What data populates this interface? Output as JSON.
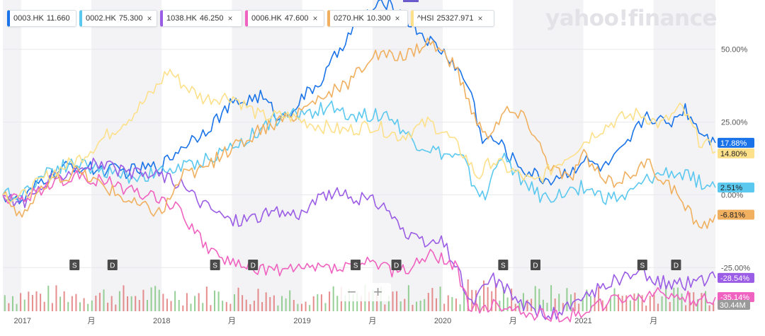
{
  "logo": "yahoo!finance",
  "chips": [
    {
      "symbol": "0003.HK",
      "value": "11.660",
      "color": "#1a73e8",
      "closable": false
    },
    {
      "symbol": "0002.HK",
      "value": "75.300",
      "color": "#5bc8f0",
      "closable": true
    },
    {
      "symbol": "1038.HK",
      "value": "46.250",
      "color": "#9b5de5",
      "closable": true
    },
    {
      "symbol": "0006.HK",
      "value": "47.600",
      "color": "#f062c0",
      "closable": true
    },
    {
      "symbol": "0270.HK",
      "value": "10.300",
      "color": "#f0b060",
      "closable": true
    },
    {
      "symbol": "^HSI",
      "value": "25327.971",
      "color": "#fde08a",
      "closable": true
    }
  ],
  "close_glyph": "×",
  "zoom": {
    "minus": "−",
    "plus": "+"
  },
  "chart_data": {
    "type": "line",
    "y_unit": "% change",
    "ylim": [
      -40,
      65
    ],
    "yticks": [
      50,
      25,
      0,
      -25
    ],
    "ytick_labels": [
      "50.00%",
      "25.00%",
      "0.00%",
      "-25.00%"
    ],
    "x_ticks": [
      {
        "label": "2017",
        "t": 0.01
      },
      {
        "label": "月",
        "t": 0.5
      },
      {
        "label": "2018",
        "t": 1.0
      },
      {
        "label": "月",
        "t": 1.5
      },
      {
        "label": "2019",
        "t": 2.0
      },
      {
        "label": "月",
        "t": 2.5
      },
      {
        "label": "2020",
        "t": 3.0
      },
      {
        "label": "月",
        "t": 3.5
      },
      {
        "label": "2021",
        "t": 4.0
      },
      {
        "label": "月",
        "t": 4.5
      }
    ],
    "x_range": [
      -0.13,
      4.94
    ],
    "shaded_bands": [
      [
        -0.13,
        0.0
      ],
      [
        0.5,
        1.0
      ],
      [
        1.5,
        2.0
      ],
      [
        2.5,
        3.0
      ],
      [
        3.5,
        4.0
      ],
      [
        4.5,
        4.94
      ]
    ],
    "series": [
      {
        "name": "0003.HK",
        "color": "#1a73e8",
        "last_label": "17.88%",
        "seed": 11,
        "points": [
          [
            -0.13,
            0
          ],
          [
            0,
            -3
          ],
          [
            0.15,
            5
          ],
          [
            0.35,
            10
          ],
          [
            0.5,
            9
          ],
          [
            0.75,
            8
          ],
          [
            1.0,
            10
          ],
          [
            1.15,
            17
          ],
          [
            1.3,
            22
          ],
          [
            1.5,
            31
          ],
          [
            1.7,
            34
          ],
          [
            1.85,
            26
          ],
          [
            2.0,
            33
          ],
          [
            2.15,
            40
          ],
          [
            2.3,
            53
          ],
          [
            2.45,
            62
          ],
          [
            2.6,
            66
          ],
          [
            2.75,
            60
          ],
          [
            2.9,
            53
          ],
          [
            3.05,
            47
          ],
          [
            3.2,
            36
          ],
          [
            3.27,
            20
          ],
          [
            3.4,
            18
          ],
          [
            3.5,
            12
          ],
          [
            3.6,
            8
          ],
          [
            3.75,
            5
          ],
          [
            3.9,
            8
          ],
          [
            4.0,
            12
          ],
          [
            4.15,
            9
          ],
          [
            4.3,
            16
          ],
          [
            4.45,
            28
          ],
          [
            4.6,
            24
          ],
          [
            4.72,
            30
          ],
          [
            4.82,
            23
          ],
          [
            4.94,
            17.88
          ]
        ]
      },
      {
        "name": "0002.HK",
        "color": "#5bc8f0",
        "last_label": "2.51%",
        "seed": 22,
        "points": [
          [
            -0.13,
            0
          ],
          [
            0,
            0
          ],
          [
            0.2,
            9
          ],
          [
            0.4,
            11
          ],
          [
            0.6,
            8
          ],
          [
            0.8,
            6
          ],
          [
            1.0,
            8
          ],
          [
            1.2,
            10
          ],
          [
            1.4,
            14
          ],
          [
            1.6,
            19
          ],
          [
            1.8,
            26
          ],
          [
            2.0,
            28
          ],
          [
            2.2,
            30
          ],
          [
            2.4,
            27
          ],
          [
            2.6,
            28
          ],
          [
            2.8,
            18
          ],
          [
            3.0,
            14
          ],
          [
            3.15,
            12
          ],
          [
            3.2,
            5
          ],
          [
            3.3,
            -2
          ],
          [
            3.4,
            14
          ],
          [
            3.55,
            6
          ],
          [
            3.7,
            -1
          ],
          [
            3.85,
            0
          ],
          [
            4.0,
            3
          ],
          [
            4.15,
            -1
          ],
          [
            4.3,
            -1
          ],
          [
            4.45,
            5
          ],
          [
            4.6,
            8
          ],
          [
            4.75,
            6
          ],
          [
            4.94,
            2.51
          ]
        ]
      },
      {
        "name": "1038.HK",
        "color": "#9b5de5",
        "last_label": "-28.54%",
        "seed": 33,
        "points": [
          [
            -0.13,
            0
          ],
          [
            0,
            -3
          ],
          [
            0.15,
            3
          ],
          [
            0.35,
            9
          ],
          [
            0.55,
            11
          ],
          [
            0.75,
            7
          ],
          [
            1.0,
            7
          ],
          [
            1.15,
            3
          ],
          [
            1.3,
            -3
          ],
          [
            1.5,
            -9
          ],
          [
            1.7,
            -7
          ],
          [
            1.85,
            -6
          ],
          [
            2.0,
            -6
          ],
          [
            2.2,
            1
          ],
          [
            2.35,
            -1
          ],
          [
            2.5,
            -2
          ],
          [
            2.6,
            -4
          ],
          [
            2.75,
            -15
          ],
          [
            2.9,
            -17
          ],
          [
            3.0,
            -16
          ],
          [
            3.1,
            -25
          ],
          [
            3.2,
            -38
          ],
          [
            3.35,
            -28
          ],
          [
            3.5,
            -35
          ],
          [
            3.65,
            -40
          ],
          [
            3.8,
            -41
          ],
          [
            3.95,
            -38
          ],
          [
            4.1,
            -32
          ],
          [
            4.25,
            -29
          ],
          [
            4.4,
            -27
          ],
          [
            4.55,
            -30
          ],
          [
            4.7,
            -31
          ],
          [
            4.85,
            -29
          ],
          [
            4.94,
            -28.54
          ]
        ]
      },
      {
        "name": "0006.HK",
        "color": "#f062c0",
        "last_label": "-35.14%",
        "seed": 44,
        "points": [
          [
            -0.13,
            0
          ],
          [
            0,
            -2
          ],
          [
            0.15,
            2
          ],
          [
            0.35,
            6
          ],
          [
            0.55,
            5
          ],
          [
            0.75,
            2
          ],
          [
            1.0,
            -1
          ],
          [
            1.15,
            -6
          ],
          [
            1.25,
            -14
          ],
          [
            1.35,
            -19
          ],
          [
            1.5,
            -24
          ],
          [
            1.7,
            -25
          ],
          [
            1.9,
            -26
          ],
          [
            2.1,
            -25
          ],
          [
            2.3,
            -25
          ],
          [
            2.5,
            -23
          ],
          [
            2.7,
            -27
          ],
          [
            2.9,
            -21
          ],
          [
            3.0,
            -21
          ],
          [
            3.1,
            -25
          ],
          [
            3.2,
            -40
          ],
          [
            3.4,
            -38
          ],
          [
            3.55,
            -40
          ],
          [
            3.7,
            -41
          ],
          [
            3.85,
            -42
          ],
          [
            4.0,
            -40
          ],
          [
            4.2,
            -37
          ],
          [
            4.4,
            -35
          ],
          [
            4.55,
            -34
          ],
          [
            4.7,
            -35
          ],
          [
            4.85,
            -36
          ],
          [
            4.94,
            -35.14
          ]
        ]
      },
      {
        "name": "0270.HK",
        "color": "#f0b060",
        "last_label": "-6.81%",
        "seed": 55,
        "points": [
          [
            -0.13,
            0
          ],
          [
            0,
            -7
          ],
          [
            0.2,
            4
          ],
          [
            0.4,
            8
          ],
          [
            0.6,
            3
          ],
          [
            0.8,
            -3
          ],
          [
            1.0,
            -6
          ],
          [
            1.15,
            7
          ],
          [
            1.3,
            9
          ],
          [
            1.5,
            16
          ],
          [
            1.7,
            22
          ],
          [
            1.9,
            26
          ],
          [
            2.1,
            33
          ],
          [
            2.3,
            37
          ],
          [
            2.5,
            48
          ],
          [
            2.7,
            47
          ],
          [
            2.9,
            53
          ],
          [
            3.0,
            49
          ],
          [
            3.1,
            43
          ],
          [
            3.2,
            30
          ],
          [
            3.3,
            20
          ],
          [
            3.45,
            29
          ],
          [
            3.6,
            26
          ],
          [
            3.75,
            11
          ],
          [
            3.9,
            5
          ],
          [
            4.0,
            14
          ],
          [
            4.15,
            4
          ],
          [
            4.3,
            6
          ],
          [
            4.45,
            11
          ],
          [
            4.6,
            4
          ],
          [
            4.75,
            -6
          ],
          [
            4.85,
            -11
          ],
          [
            4.94,
            -6.81
          ]
        ]
      },
      {
        "name": "^HSI",
        "color": "#fde08a",
        "last_label": "14.80%",
        "seed": 66,
        "points": [
          [
            -0.13,
            0
          ],
          [
            0,
            -1
          ],
          [
            0.2,
            7
          ],
          [
            0.4,
            12
          ],
          [
            0.6,
            20
          ],
          [
            0.8,
            28
          ],
          [
            0.95,
            36
          ],
          [
            1.05,
            43
          ],
          [
            1.15,
            38
          ],
          [
            1.3,
            33
          ],
          [
            1.5,
            34
          ],
          [
            1.7,
            27
          ],
          [
            1.9,
            27
          ],
          [
            2.1,
            24
          ],
          [
            2.3,
            22
          ],
          [
            2.5,
            24
          ],
          [
            2.7,
            20
          ],
          [
            2.9,
            25
          ],
          [
            3.0,
            22
          ],
          [
            3.15,
            14
          ],
          [
            3.25,
            6
          ],
          [
            3.35,
            12
          ],
          [
            3.5,
            8
          ],
          [
            3.65,
            4
          ],
          [
            3.8,
            10
          ],
          [
            3.95,
            16
          ],
          [
            4.1,
            22
          ],
          [
            4.25,
            26
          ],
          [
            4.4,
            28
          ],
          [
            4.55,
            24
          ],
          [
            4.7,
            30
          ],
          [
            4.82,
            19
          ],
          [
            4.94,
            14.8
          ]
        ]
      }
    ],
    "event_markers": [
      {
        "label": "S",
        "t": 0.38
      },
      {
        "label": "D",
        "t": 0.65
      },
      {
        "label": "S",
        "t": 1.38
      },
      {
        "label": "D",
        "t": 1.65
      },
      {
        "label": "S",
        "t": 2.38
      },
      {
        "label": "D",
        "t": 2.67
      },
      {
        "label": "S",
        "t": 3.43
      },
      {
        "label": "D",
        "t": 3.66
      },
      {
        "label": "S",
        "t": 4.42
      },
      {
        "label": "D",
        "t": 4.66
      }
    ],
    "volume_label": "30.44M",
    "volume_colors": {
      "up": "#7cc47c",
      "down": "#e07070"
    },
    "volume_bars": 180
  }
}
